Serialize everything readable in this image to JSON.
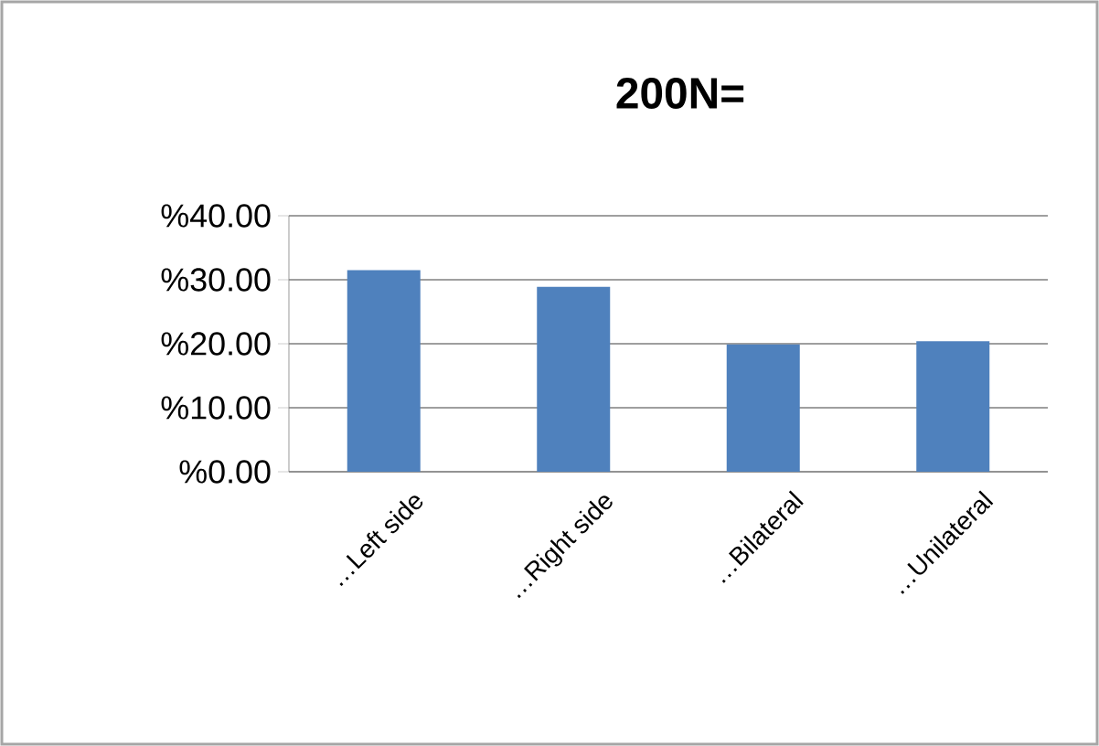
{
  "chart_data": {
    "type": "bar",
    "title": "200N=",
    "categories": [
      "…Left side",
      "…Right side",
      "…Bilateral",
      "…Unilateral"
    ],
    "values": [
      31.5,
      28.9,
      19.9,
      20.4
    ],
    "color": "#4f81bd",
    "ylim": [
      0,
      40
    ],
    "yticks": [
      {
        "value": 0,
        "label": "%0.00"
      },
      {
        "value": 10,
        "label": "%10.00"
      },
      {
        "value": 20,
        "label": "%20.00"
      },
      {
        "value": 30,
        "label": "%30.00"
      },
      {
        "value": 40,
        "label": "%40.00"
      }
    ],
    "grid": "y"
  }
}
